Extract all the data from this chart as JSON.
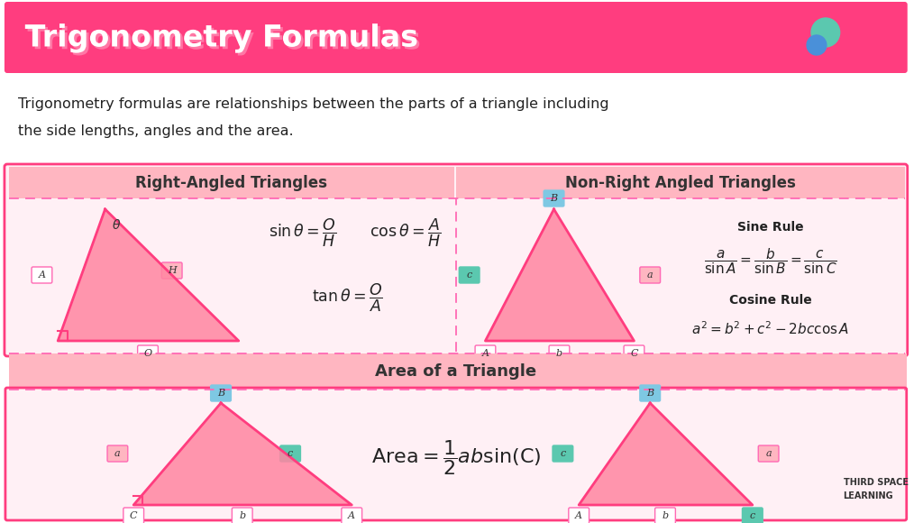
{
  "title": "Trigonometry Formulas",
  "title_bg": "#FF3D7F",
  "title_color": "#FFFFFF",
  "description_line1": "Trigonometry formulas are relationships between the parts of a triangle including",
  "description_line2": "the side lengths, angles and the area.",
  "bg_color": "#FFFFFF",
  "panel_bg": "#FFB6C1",
  "panel_border": "#FF3D7F",
  "dashed_color": "#FF69B4",
  "inner_bg": "#FFF0F5",
  "teal_color": "#5BC8AF",
  "blue_color": "#7EC8E3",
  "yellow_color": "#F5E642",
  "label_border": "#FF69B4",
  "text_color": "#333333",
  "formula_color": "#222222"
}
